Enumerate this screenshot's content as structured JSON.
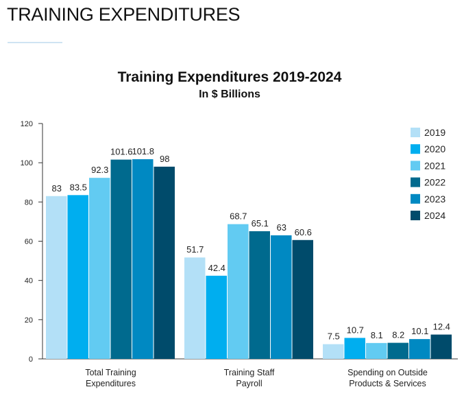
{
  "page": {
    "heading": "TRAINING EXPENDITURES"
  },
  "chart_data": {
    "type": "bar",
    "title": "Training Expenditures 2019-2024",
    "subtitle": "In $ Billions",
    "xlabel": "",
    "ylabel": "",
    "ylim": [
      0,
      120
    ],
    "yticks": [
      0,
      20,
      40,
      60,
      80,
      100,
      120
    ],
    "categories": [
      [
        "Total Training",
        "Expenditures"
      ],
      [
        "Training Staff",
        "Payroll"
      ],
      [
        "Spending on Outside",
        "Products & Services"
      ]
    ],
    "series": [
      {
        "name": "2019",
        "color": "#b3e0f7",
        "values": [
          83,
          51.7,
          7.5
        ]
      },
      {
        "name": "2020",
        "color": "#00aeef",
        "values": [
          83.5,
          42.4,
          10.7
        ]
      },
      {
        "name": "2021",
        "color": "#62cbf2",
        "values": [
          92.3,
          68.7,
          8.1
        ]
      },
      {
        "name": "2022",
        "color": "#006a8e",
        "values": [
          101.6,
          65.1,
          8.2
        ]
      },
      {
        "name": "2023",
        "color": "#0089c2",
        "values": [
          101.8,
          63,
          10.1
        ]
      },
      {
        "name": "2024",
        "color": "#004b6b",
        "values": [
          98,
          60.6,
          12.4
        ]
      }
    ],
    "legend_position": "top-right",
    "grid": false
  }
}
